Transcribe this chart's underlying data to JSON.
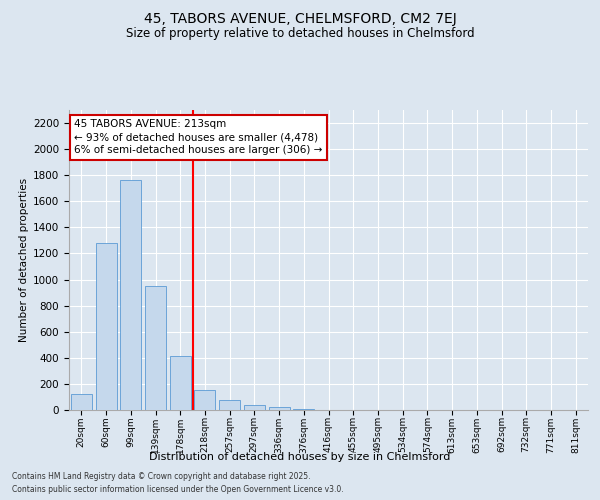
{
  "title_line1": "45, TABORS AVENUE, CHELMSFORD, CM2 7EJ",
  "title_line2": "Size of property relative to detached houses in Chelmsford",
  "xlabel": "Distribution of detached houses by size in Chelmsford",
  "ylabel": "Number of detached properties",
  "bar_values": [
    120,
    1280,
    1760,
    950,
    415,
    155,
    80,
    38,
    22,
    5,
    0,
    0,
    0,
    0,
    0,
    0,
    0,
    0,
    0,
    0,
    0
  ],
  "bar_labels": [
    "20sqm",
    "60sqm",
    "99sqm",
    "139sqm",
    "178sqm",
    "218sqm",
    "257sqm",
    "297sqm",
    "336sqm",
    "376sqm",
    "416sqm",
    "455sqm",
    "495sqm",
    "534sqm",
    "574sqm",
    "613sqm",
    "653sqm",
    "692sqm",
    "732sqm",
    "771sqm",
    "811sqm"
  ],
  "bar_color": "#c5d8ec",
  "bar_edge_color": "#5b9bd5",
  "background_color": "#dce6f0",
  "grid_color": "#ffffff",
  "red_line_x": 4.5,
  "annotation_text": "45 TABORS AVENUE: 213sqm\n← 93% of detached houses are smaller (4,478)\n6% of semi-detached houses are larger (306) →",
  "annotation_box_color": "#ffffff",
  "annotation_box_edge": "#cc0000",
  "ylim": [
    0,
    2300
  ],
  "yticks": [
    0,
    200,
    400,
    600,
    800,
    1000,
    1200,
    1400,
    1600,
    1800,
    2000,
    2200
  ],
  "footnote1": "Contains HM Land Registry data © Crown copyright and database right 2025.",
  "footnote2": "Contains public sector information licensed under the Open Government Licence v3.0."
}
